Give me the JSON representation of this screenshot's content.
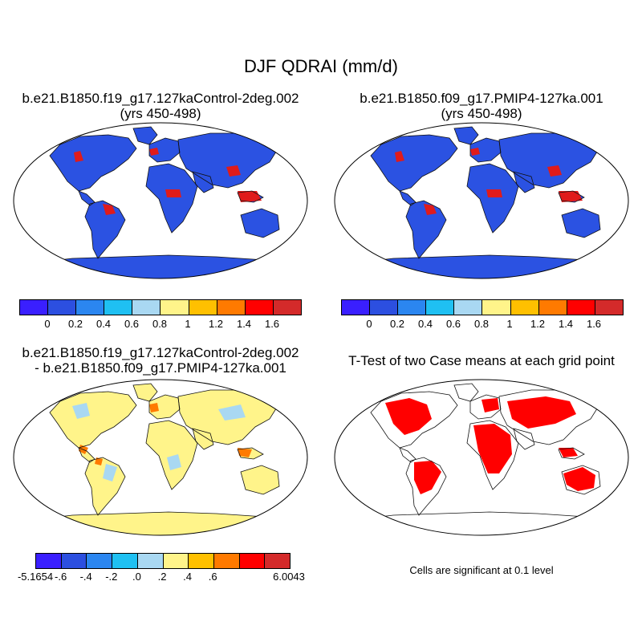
{
  "main_title": "DJF QDRAI (mm/d)",
  "panels": {
    "top_left": {
      "title_line1": "b.e21.B1850.f19_g17.127kaControl-2deg.002",
      "title_line2": "(yrs 450-498)"
    },
    "top_right": {
      "title_line1": "b.e21.B1850.f09_g17.PMIP4-127ka.001",
      "title_line2": "(yrs 450-498)"
    },
    "bottom_left": {
      "title_line1": "b.e21.B1850.f19_g17.127kaControl-2deg.002",
      "title_line2": "- b.e21.B1850.f09_g17.PMIP4-127ka.001"
    },
    "bottom_right": {
      "title_line1": "T-Test of two Case means at each grid point"
    }
  },
  "colorbars": {
    "absolute": {
      "colors": [
        "#3a1fff",
        "#2c4fe0",
        "#2b86f0",
        "#1fc0f2",
        "#a9d8f2",
        "#fff48a",
        "#ffc000",
        "#ff7a00",
        "#ff0000",
        "#d42a2a"
      ],
      "labels": [
        "0",
        "0.2",
        "0.4",
        "0.6",
        "0.8",
        "1",
        "1.2",
        "1.4",
        "1.6"
      ]
    },
    "difference": {
      "colors": [
        "#3a1fff",
        "#2c4fe0",
        "#2b86f0",
        "#1fc0f2",
        "#a9d8f2",
        "#fff48a",
        "#ffc000",
        "#ff7a00",
        "#ff0000",
        "#d42a2a"
      ],
      "min_label": "-5.1654",
      "labels": [
        "-.6",
        "-.4",
        "-.2",
        ".0",
        ".2",
        ".4",
        ".6"
      ],
      "max_label": "6.0043"
    }
  },
  "significance_note": "Cells are significant at 0.1 level"
}
